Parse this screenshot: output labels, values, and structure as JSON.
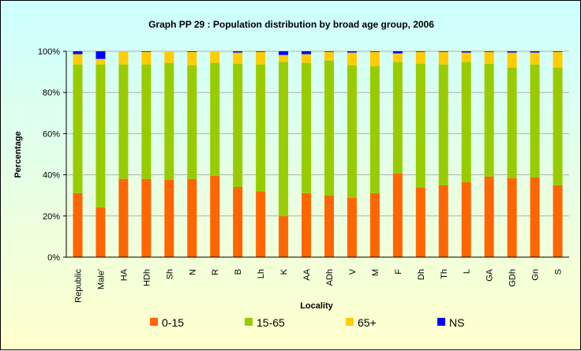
{
  "chart_data": {
    "type": "bar",
    "stacked": true,
    "title": "Graph PP 29 : Population distribution by broad age group, 2006",
    "xlabel": "Locality",
    "ylabel": "Percentage",
    "ylim": [
      0,
      100
    ],
    "yticks": [
      "0%",
      "20%",
      "40%",
      "60%",
      "80%",
      "100%"
    ],
    "grid": true,
    "legend_position": "bottom",
    "categories": [
      "Republic",
      "Male'",
      "HA",
      "HDh",
      "Sh",
      "N",
      "R",
      "B",
      "Lh",
      "K",
      "AA",
      "ADh",
      "V",
      "M",
      "F",
      "Dh",
      "Th",
      "L",
      "GA",
      "GDh",
      "Gn",
      "S"
    ],
    "series": [
      {
        "name": "0-15",
        "color": "#ff6600",
        "values": [
          31.1,
          24.2,
          38.0,
          38.0,
          37.6,
          38.0,
          39.5,
          34.1,
          31.8,
          19.9,
          31.1,
          29.9,
          28.8,
          31.1,
          40.7,
          33.8,
          34.9,
          36.4,
          39.1,
          38.4,
          38.7,
          34.9
        ]
      },
      {
        "name": "15-65",
        "color": "#99cc00",
        "values": [
          62.5,
          69.4,
          55.6,
          55.6,
          56.8,
          55.2,
          54.9,
          59.9,
          61.8,
          74.9,
          63.3,
          65.6,
          64.4,
          61.7,
          54.1,
          60.2,
          58.7,
          58.4,
          54.9,
          53.7,
          54.9,
          57.2
        ]
      },
      {
        "name": "65+",
        "color": "#ffcc00",
        "values": [
          5.0,
          2.7,
          6.4,
          6.1,
          5.6,
          6.5,
          5.6,
          5.4,
          6.1,
          3.4,
          4.2,
          4.2,
          6.2,
          6.9,
          4.2,
          5.7,
          6.1,
          4.6,
          5.7,
          7.3,
          5.8,
          7.6
        ]
      },
      {
        "name": "NS",
        "color": "#0000ff",
        "values": [
          1.4,
          3.7,
          0.0,
          0.3,
          0.0,
          0.3,
          0.0,
          0.6,
          0.3,
          1.8,
          1.4,
          0.3,
          0.6,
          0.3,
          1.0,
          0.3,
          0.3,
          0.6,
          0.3,
          0.6,
          0.6,
          0.3
        ]
      }
    ]
  }
}
